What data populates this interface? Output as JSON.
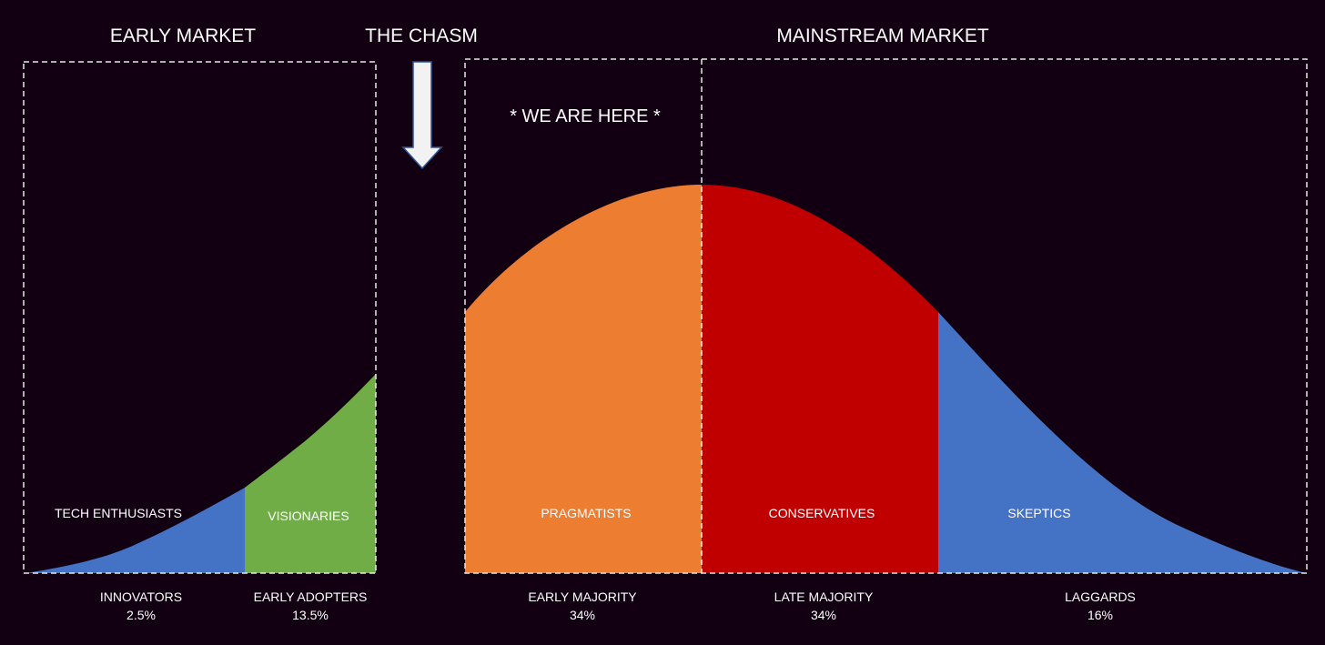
{
  "headers": {
    "early_market": "EARLY MARKET",
    "chasm": "THE CHASM",
    "mainstream_market": "MAINSTREAM MARKET"
  },
  "marker": "* WE ARE HERE *",
  "segments": [
    {
      "label": "TECH ENTHUSIASTS",
      "group": "INNOVATORS",
      "share": "2.5%",
      "color": "#4472c4"
    },
    {
      "label": "VISIONARIES",
      "group": "EARLY ADOPTERS",
      "share": "13.5%",
      "color": "#70ad47"
    },
    {
      "label": "PRAGMATISTS",
      "group": "EARLY MAJORITY",
      "share": "34%",
      "color": "#ed7d31"
    },
    {
      "label": "CONSERVATIVES",
      "group": "LATE MAJORITY",
      "share": "34%",
      "color": "#c00000"
    },
    {
      "label": "SKEPTICS",
      "group": "LAGGARDS",
      "share": "16%",
      "color": "#4472c4"
    }
  ],
  "colors": {
    "background": "#120012",
    "arrow_fill": "#f2f2f2",
    "arrow_outline": "#2f5597"
  }
}
